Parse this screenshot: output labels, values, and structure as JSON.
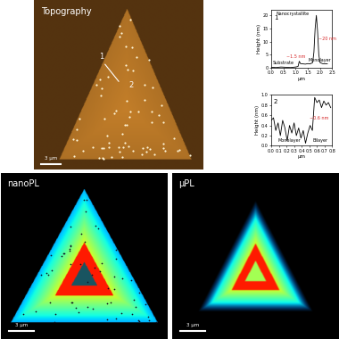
{
  "images": [
    {
      "title": "Topography",
      "scale_bar": "3 μm",
      "markers": [
        "1",
        "2"
      ]
    },
    {
      "title": "nanoPL",
      "scale_bar": "3 μm"
    },
    {
      "title": "μPL",
      "scale_bar": "3 μm"
    }
  ],
  "chart_data": [
    {
      "type": "line",
      "title": "1",
      "x_label": "μm",
      "y_label": "Height (nm)",
      "color": "#000000",
      "x": [
        0.0,
        0.2,
        0.4,
        0.6,
        0.8,
        1.0,
        1.1,
        1.15,
        1.2,
        1.3,
        1.4,
        1.5,
        1.6,
        1.7,
        1.75,
        1.8,
        1.85,
        1.9,
        1.95,
        2.0,
        2.1,
        2.2,
        2.3
      ],
      "values": [
        0.2,
        0.1,
        0.3,
        0.2,
        0.1,
        0.3,
        0.5,
        2.5,
        1.6,
        1.5,
        1.4,
        1.6,
        1.5,
        2.0,
        6,
        15,
        20,
        14,
        5,
        2,
        1.6,
        1.5,
        1.5
      ],
      "xlim": [
        0.0,
        2.5
      ],
      "ylim": [
        0,
        22
      ],
      "xticks": [
        0.0,
        0.5,
        1.0,
        1.5,
        2.0,
        2.5
      ],
      "yticks": [
        0,
        5,
        10,
        15,
        20
      ],
      "annotations": [
        {
          "text": "Nanocrystallite",
          "color": "#000000"
        },
        {
          "text": "~20 nm",
          "color": "#d62728"
        },
        {
          "text": "~1.5 nm",
          "color": "#d62728"
        },
        {
          "text": "Substrate",
          "color": "#000000"
        },
        {
          "text": "Monolayer",
          "color": "#000000"
        }
      ]
    },
    {
      "type": "line",
      "title": "2",
      "x_label": "μm",
      "y_label": "Height (nm)",
      "color": "#000000",
      "x": [
        0.0,
        0.03,
        0.06,
        0.09,
        0.12,
        0.15,
        0.18,
        0.21,
        0.24,
        0.27,
        0.3,
        0.33,
        0.36,
        0.39,
        0.42,
        0.45,
        0.48,
        0.51,
        0.54,
        0.57,
        0.6,
        0.63,
        0.66,
        0.69,
        0.72,
        0.75,
        0.78
      ],
      "values": [
        0.5,
        0.55,
        0.3,
        0.45,
        0.2,
        0.5,
        0.35,
        0.1,
        0.4,
        0.25,
        0.45,
        0.2,
        0.35,
        0.15,
        0.3,
        0.05,
        0.25,
        0.4,
        0.3,
        0.95,
        0.85,
        0.9,
        0.75,
        0.88,
        0.8,
        0.85,
        0.75
      ],
      "xlim": [
        0.0,
        0.8
      ],
      "ylim": [
        0.0,
        1.0
      ],
      "xticks": [
        0.0,
        0.1,
        0.2,
        0.3,
        0.4,
        0.5,
        0.6,
        0.7,
        0.8
      ],
      "yticks": [
        0.0,
        0.2,
        0.4,
        0.6,
        0.8,
        1.0
      ],
      "annotations": [
        {
          "text": "~0.6 nm",
          "color": "#d62728"
        },
        {
          "text": "Monolayer",
          "color": "#000000"
        },
        {
          "text": "Bilayer",
          "color": "#000000"
        }
      ]
    }
  ]
}
